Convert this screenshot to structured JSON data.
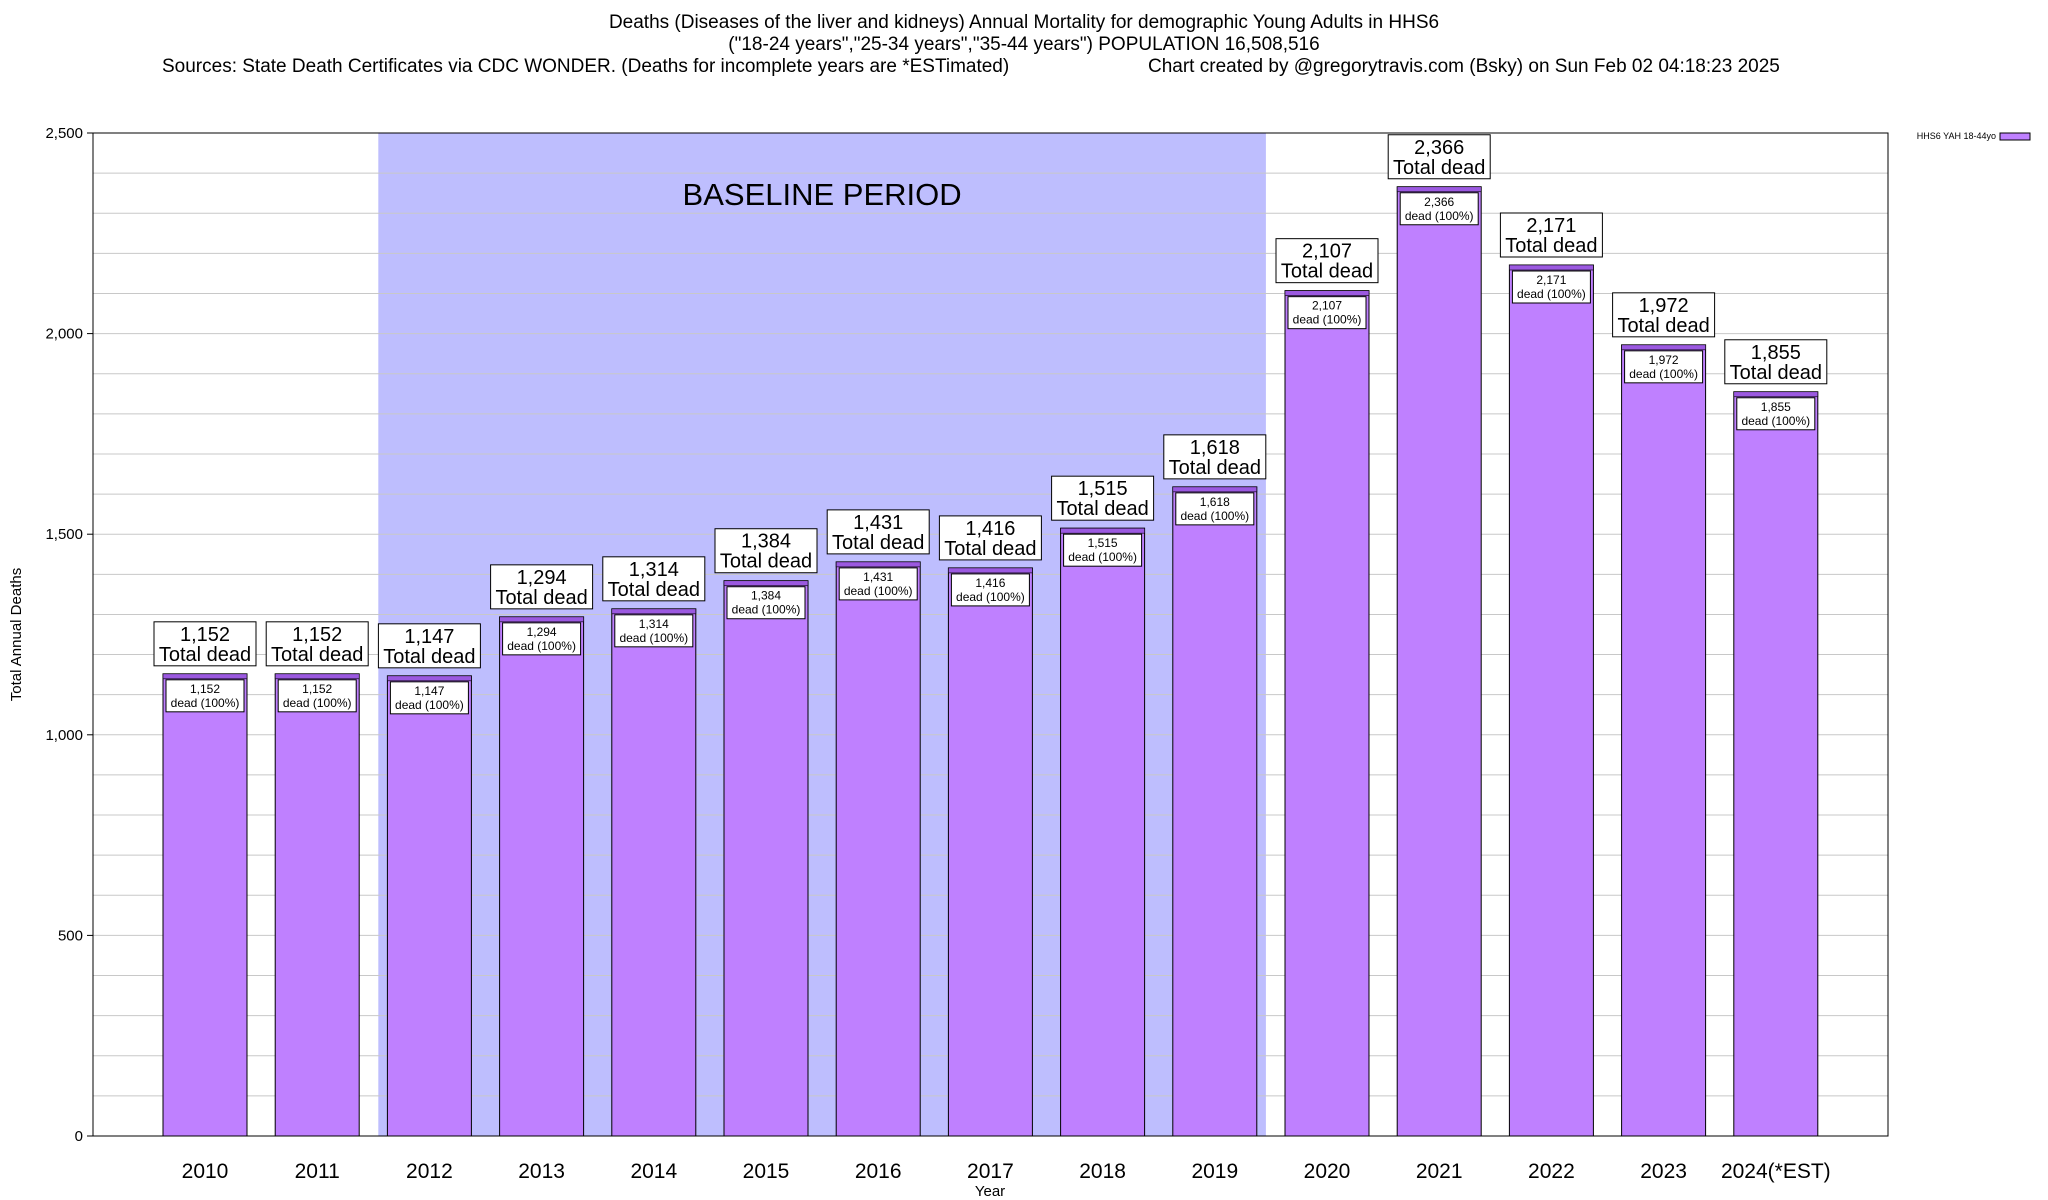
{
  "header": {
    "title_line1": "Deaths (Diseases of the liver and kidneys) Annual Mortality for demographic Young Adults in HHS6",
    "title_line2": "(\"18-24 years\",\"25-34 years\",\"35-44 years\") POPULATION 16,508,516",
    "sources": "Sources: State Death Certificates via CDC WONDER. (Deaths for incomplete years are *ESTimated)",
    "created": "Chart created by @gregorytravis.com (Bsky) on Sun Feb 02 04:18:23 2025"
  },
  "colors": {
    "bar": "#bf80ff",
    "bar_top": "#9b59e0",
    "baseline_band": "#bebefe",
    "grid": "#c8c8c8",
    "axis": "#000000"
  },
  "chart_data": {
    "type": "bar",
    "title": "Deaths (Diseases of the liver and kidneys) Annual Mortality for demographic Young Adults in HHS6",
    "xlabel": "Year",
    "ylabel": "Total Annual Deaths",
    "ylim": [
      0,
      2500
    ],
    "yticks": [
      0,
      500,
      1000,
      1500,
      2000,
      2500
    ],
    "ytick_labels": [
      "0",
      "500",
      "1,000",
      "1,500",
      "2,000",
      "2,500"
    ],
    "grid": true,
    "legend_position": "top-right",
    "categories": [
      "2010",
      "2011",
      "2012",
      "2013",
      "2014",
      "2015",
      "2016",
      "2017",
      "2018",
      "2019",
      "2020",
      "2021",
      "2022",
      "2023",
      "2024(*EST)"
    ],
    "series": [
      {
        "name": "HHS6 YAH 18-44yo",
        "values": [
          1152,
          1152,
          1147,
          1294,
          1314,
          1384,
          1431,
          1416,
          1515,
          1618,
          2107,
          2366,
          2171,
          1972,
          1855
        ]
      }
    ],
    "value_labels": [
      "1,152",
      "1,152",
      "1,147",
      "1,294",
      "1,314",
      "1,384",
      "1,431",
      "1,416",
      "1,515",
      "1,618",
      "2,107",
      "2,366",
      "2,171",
      "1,972",
      "1,855"
    ],
    "total_suffix": "Total dead",
    "inner_suffix": "dead (100%)",
    "baseline_band": {
      "label": "BASELINE PERIOD",
      "from": "2012",
      "to": "2019"
    }
  }
}
